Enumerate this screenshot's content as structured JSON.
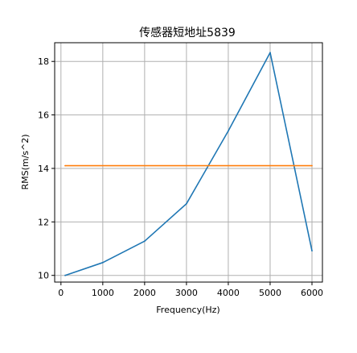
{
  "chart_data": {
    "type": "line",
    "title": "传感器短地址5839",
    "xlabel": "Frequency(Hz)",
    "ylabel": "RMS(m/s^2)",
    "xlim": [
      -150,
      6250
    ],
    "ylim": [
      9.75,
      18.7
    ],
    "xticks": [
      0,
      1000,
      2000,
      3000,
      4000,
      5000,
      6000
    ],
    "yticks": [
      10,
      12,
      14,
      16,
      18
    ],
    "grid": true,
    "series": [
      {
        "color": "#1f77b4",
        "x": [
          100,
          1000,
          2000,
          3000,
          4000,
          5000,
          6000
        ],
        "y": [
          10.0,
          10.48,
          11.28,
          12.68,
          15.4,
          18.33,
          10.92
        ]
      },
      {
        "color": "#ff7f0e",
        "x": [
          100,
          6000
        ],
        "y": [
          14.1,
          14.1
        ]
      }
    ]
  }
}
